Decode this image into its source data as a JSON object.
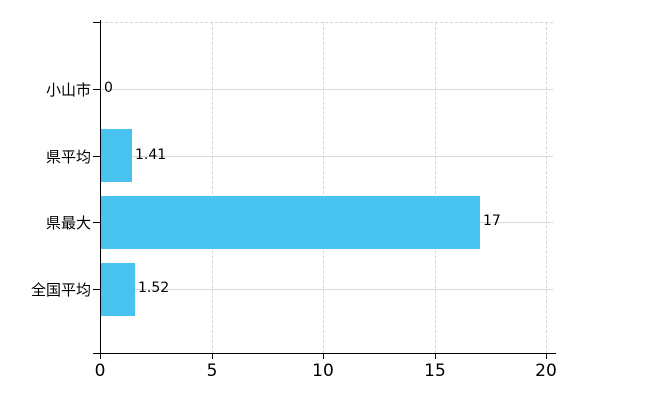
{
  "chart_data": {
    "type": "bar",
    "orientation": "horizontal",
    "title": "",
    "xlabel": "",
    "ylabel": "",
    "categories": [
      "小山市",
      "県平均",
      "県最大",
      "全国平均"
    ],
    "values": [
      0,
      1.41,
      17,
      1.52
    ],
    "value_labels": [
      "0",
      "1.41",
      "17",
      "1.52"
    ],
    "x_ticks": [
      0,
      5,
      10,
      15,
      20
    ],
    "x_tick_labels": [
      "0",
      "5",
      "10",
      "15",
      "20"
    ],
    "xlim": [
      0,
      20
    ],
    "grid": true,
    "legend": false,
    "colors": {
      "bar": "#48c3f0",
      "solid_grid": "#d9d9d9",
      "dashed_grid": "#d6d6d6",
      "axis": "#000000",
      "text": "#000000",
      "background": "#ffffff"
    }
  }
}
